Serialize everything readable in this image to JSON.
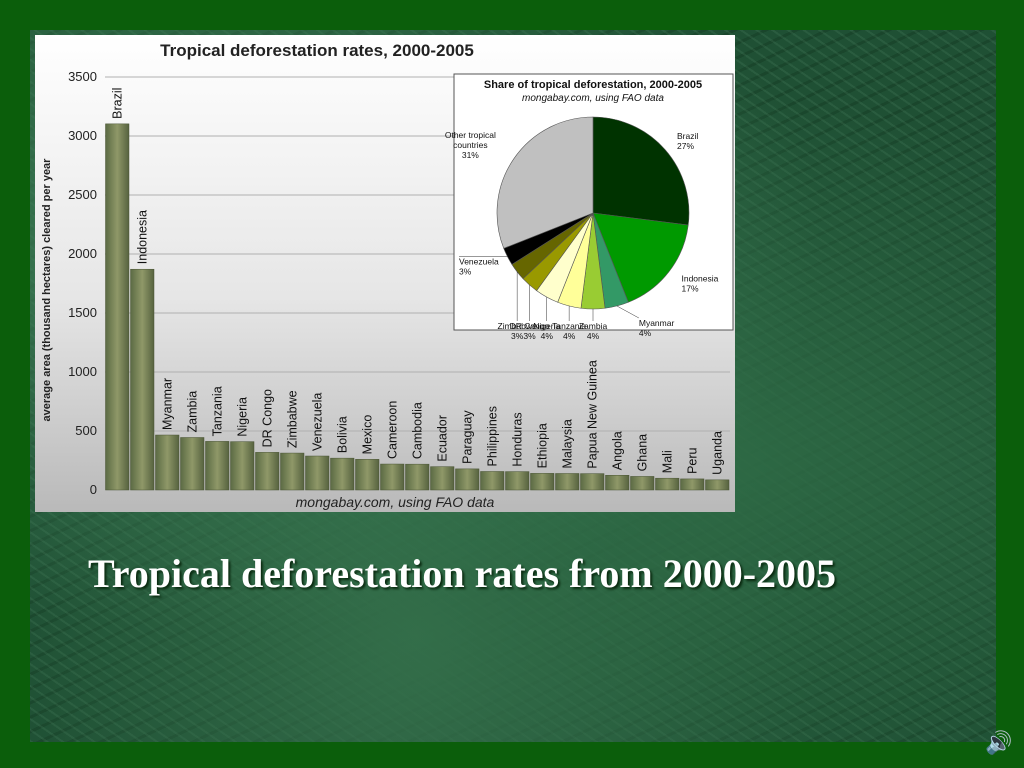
{
  "slide": {
    "caption": "Tropical deforestation rates from 2000-2005",
    "speaker_icon": "speaker-icon",
    "speaker_glyph": "🔊"
  },
  "colors": {
    "slide_background": "#0b5e0b",
    "bar_fill": "#6f7a52",
    "plot_background": "#d8d8d8",
    "pie_brazil": "#003300",
    "pie_indonesia": "#009900",
    "pie_myanmar": "#339966",
    "pie_zambia": "#99cc33",
    "pie_tanzania": "#ffff99",
    "pie_nigeria": "#ffffcc",
    "pie_drcongo": "#999900",
    "pie_zimbabwe": "#666600",
    "pie_venezuela": "#000000",
    "pie_other": "#c0c0c0"
  },
  "chart_data": [
    {
      "type": "bar",
      "title": "Tropical deforestation rates, 2000-2005",
      "source": "mongabay.com, using FAO data",
      "ylabel": "average area (thousand hectares) cleared per year",
      "ylim": [
        0,
        3500
      ],
      "yticks": [
        0,
        500,
        1000,
        1500,
        2000,
        2500,
        3000,
        3500
      ],
      "grid": true,
      "categories": [
        "Brazil",
        "Indonesia",
        "Myanmar",
        "Zambia",
        "Tanzania",
        "Nigeria",
        "DR Congo",
        "Zimbabwe",
        "Venezuela",
        "Bolivia",
        "Mexico",
        "Cameroon",
        "Cambodia",
        "Ecuador",
        "Paraguay",
        "Philippines",
        "Honduras",
        "Ethiopia",
        "Malaysia",
        "Papua New Guinea",
        "Angola",
        "Ghana",
        "Mali",
        "Peru",
        "Uganda"
      ],
      "values": [
        3103,
        1871,
        466,
        445,
        412,
        410,
        319,
        313,
        288,
        270,
        260,
        220,
        219,
        198,
        179,
        157,
        156,
        141,
        140,
        139,
        125,
        115,
        100,
        94,
        86
      ]
    },
    {
      "type": "pie",
      "title": "Share of tropical deforestation, 2000-2005",
      "subtitle": "mongabay.com, using FAO data",
      "slices": [
        {
          "label": "Brazil",
          "value": 27,
          "display": "27%",
          "color_key": "pie_brazil"
        },
        {
          "label": "Indonesia",
          "value": 17,
          "display": "17%",
          "color_key": "pie_indonesia"
        },
        {
          "label": "Myanmar",
          "value": 4,
          "display": "4%",
          "color_key": "pie_myanmar"
        },
        {
          "label": "Zambia",
          "value": 4,
          "display": "4%",
          "color_key": "pie_zambia"
        },
        {
          "label": "Tanzania",
          "value": 4,
          "display": "4%",
          "color_key": "pie_tanzania"
        },
        {
          "label": "Nigeria",
          "value": 4,
          "display": "4%",
          "color_key": "pie_nigeria"
        },
        {
          "label": "DR Congo",
          "value": 3,
          "display": "3%",
          "color_key": "pie_drcongo"
        },
        {
          "label": "Zimbabwe",
          "value": 3,
          "display": "3%",
          "color_key": "pie_zimbabwe"
        },
        {
          "label": "Venezuela",
          "value": 3,
          "display": "3%",
          "color_key": "pie_venezuela"
        },
        {
          "label": "Other tropical countries",
          "value": 31,
          "display": "31%",
          "color_key": "pie_other"
        }
      ]
    }
  ]
}
